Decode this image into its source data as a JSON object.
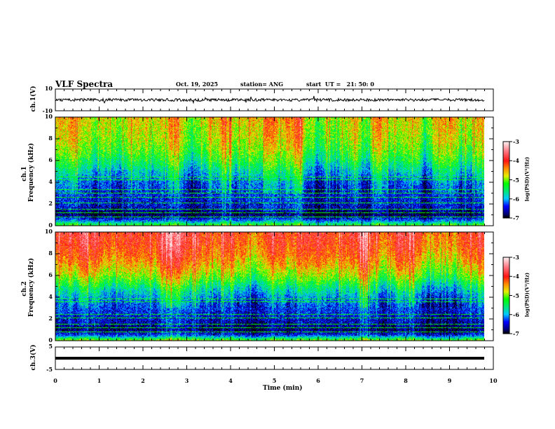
{
  "chart_data": {
    "type": "heatmap",
    "title": "VLF Spectra",
    "date": "Oct. 19, 2025",
    "station": "station= ANG",
    "start": "start  UT =   21: 50: 0",
    "xlabel": "Time  (min)",
    "xlim": [
      0,
      10
    ],
    "xticks": [
      "0",
      "1",
      "2",
      "3",
      "4",
      "5",
      "6",
      "7",
      "8",
      "9",
      "10"
    ],
    "panels": [
      {
        "name": "ch1-waveform",
        "ylabel": "ch.1(V)",
        "ylim": [
          -10,
          10
        ],
        "yticks": [
          "10",
          "-10"
        ]
      },
      {
        "name": "ch1-spectrogram",
        "ylabel": "ch.1",
        "ylabel2": "Frequency  (kHz)",
        "ylim": [
          0,
          10
        ],
        "yticks": [
          "0",
          "2",
          "4",
          "6",
          "8",
          "10"
        ],
        "mean_log_psd_profile": {
          "freq_khz": [
            0,
            0.5,
            1,
            1.5,
            2,
            3,
            4,
            5,
            6,
            7,
            8,
            9,
            10
          ],
          "log_psd": [
            -5.2,
            -6.3,
            -6.9,
            -6.6,
            -6.5,
            -6.4,
            -6.2,
            -5.8,
            -5.4,
            -5.1,
            -4.9,
            -4.8,
            -4.7
          ]
        },
        "line_freqs_khz": [
          0.8,
          1.2,
          1.5,
          2.1,
          2.6,
          3.0,
          3.3,
          4.2,
          4.5
        ]
      },
      {
        "name": "ch2-spectrogram",
        "ylabel": "ch.2",
        "ylabel2": "Frequency  (kHz)",
        "ylim": [
          0,
          10
        ],
        "yticks": [
          "0",
          "2",
          "4",
          "6",
          "8",
          "10"
        ],
        "mean_log_psd_profile": {
          "freq_khz": [
            0,
            0.5,
            1,
            1.5,
            2,
            3,
            4,
            5,
            6,
            7,
            8,
            9,
            10
          ],
          "log_psd": [
            -5.0,
            -6.4,
            -6.8,
            -6.6,
            -6.5,
            -6.3,
            -6.0,
            -5.5,
            -4.9,
            -4.5,
            -4.2,
            -4.0,
            -3.9
          ]
        },
        "line_freqs_khz": [
          0.8,
          1.2,
          1.5,
          2.1,
          2.4,
          3.6,
          3.8
        ]
      },
      {
        "name": "ch3-waveform",
        "ylabel": "ch.3(V)",
        "ylim": [
          -5,
          5
        ],
        "yticks": [
          "5",
          "-5"
        ],
        "level": 0
      }
    ],
    "colorbar": {
      "label": "log(PSD)(V²/Hz)",
      "range": [
        -7,
        -3
      ],
      "ticks": [
        "-3",
        "-4",
        "-5",
        "-6",
        "-7"
      ]
    }
  }
}
